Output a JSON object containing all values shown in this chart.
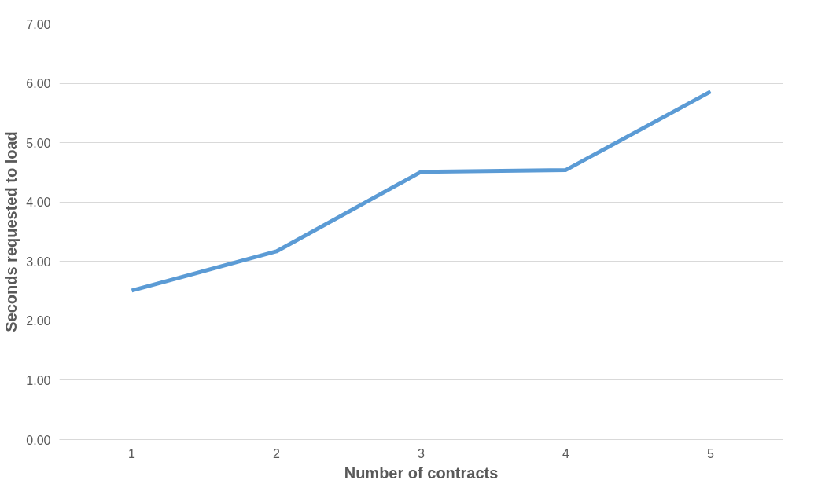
{
  "chart_data": {
    "type": "line",
    "xlabel": "Number of contracts",
    "ylabel": "Seconds requested to load",
    "categories": [
      "1",
      "2",
      "3",
      "4",
      "5"
    ],
    "series": [
      {
        "color": "#5b9bd5",
        "values": [
          2.51,
          3.17,
          4.51,
          4.54,
          5.86
        ]
      }
    ],
    "ylim": [
      0,
      7
    ],
    "yticks": [
      {
        "value": 0,
        "label": "0.00"
      },
      {
        "value": 1,
        "label": "1.00"
      },
      {
        "value": 2,
        "label": "2.00"
      },
      {
        "value": 3,
        "label": "3.00"
      },
      {
        "value": 4,
        "label": "4.00"
      },
      {
        "value": 5,
        "label": "5.00"
      },
      {
        "value": 6,
        "label": "6.00"
      },
      {
        "value": 7,
        "label": "7.00"
      }
    ],
    "grid": "y",
    "marker": "none",
    "line_style": "solid"
  }
}
